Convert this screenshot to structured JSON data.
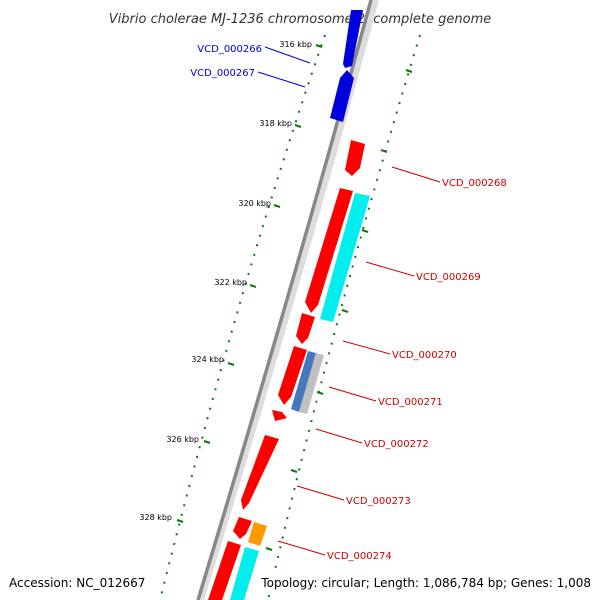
{
  "title": "Vibrio cholerae MJ-1236 chromosome 2, complete genome",
  "footer": {
    "accession": "Accession: NC_012667",
    "summary": "Topology: circular; Length: 1,086,784 bp; Genes: 1,008"
  },
  "colors": {
    "backbone": "#888888",
    "tick": "#0a7a0a",
    "label_blue": "#0000cc",
    "label_red": "#cc0000",
    "gene_red": "#ff0000",
    "gene_blue": "#0000dd",
    "gene_cyan": "#00eeee",
    "gene_orange": "#ff9900",
    "gene_steelblue": "#4477bb",
    "gene_silver": "#c0c0c0"
  },
  "ticks": [
    {
      "label": "316 kbp"
    },
    {
      "label": "318 kbp"
    },
    {
      "label": "320 kbp"
    },
    {
      "label": "322 kbp"
    },
    {
      "label": "324 kbp"
    },
    {
      "label": "326 kbp"
    },
    {
      "label": "328 kbp"
    }
  ],
  "genes": [
    {
      "id": "VCD_000266",
      "color": "blue"
    },
    {
      "id": "VCD_000267",
      "color": "blue"
    },
    {
      "id": "VCD_000268",
      "color": "red"
    },
    {
      "id": "VCD_000269",
      "color": "red"
    },
    {
      "id": "VCD_000270",
      "color": "red"
    },
    {
      "id": "VCD_000271",
      "color": "red"
    },
    {
      "id": "VCD_000272",
      "color": "red"
    },
    {
      "id": "VCD_000273",
      "color": "red"
    },
    {
      "id": "VCD_000274",
      "color": "red"
    }
  ]
}
